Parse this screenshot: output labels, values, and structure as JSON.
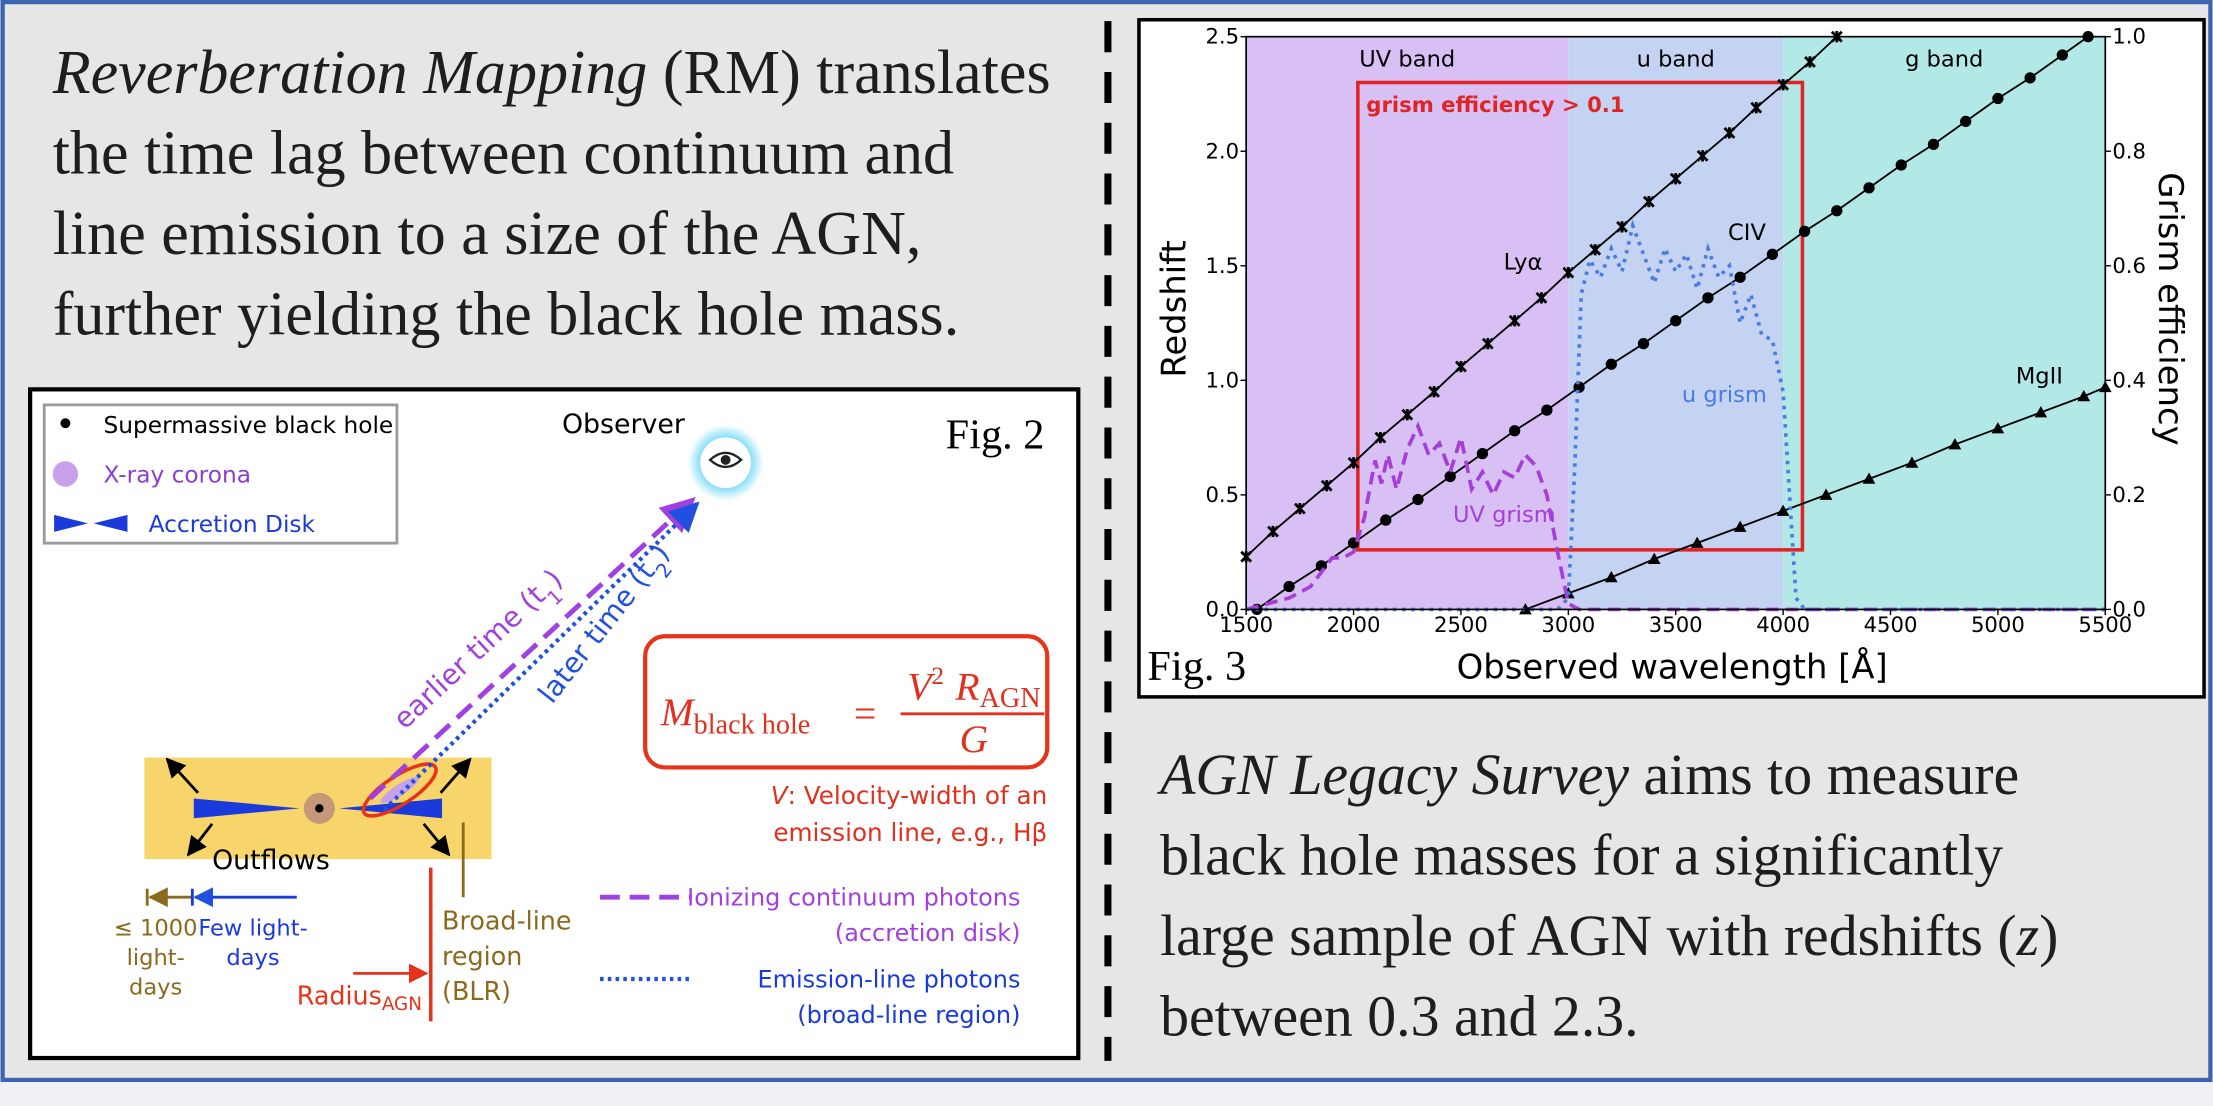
{
  "intro": {
    "emphasis": "Reverberation Mapping",
    "lines": [
      " (RM) translates",
      "the time lag between continuum and",
      "line emission to a size of the AGN,",
      "further yielding the black hole mass."
    ]
  },
  "outro": {
    "emphasis": "AGN Legacy Survey",
    "lines": [
      " aims to measure",
      "black hole masses for a significantly",
      "large sample of AGN with redshifts (",
      "between 0.3 and 2.3."
    ],
    "variable": "z",
    "close": ")"
  },
  "figure2": {
    "label": "Fig. 2",
    "legend": [
      "Supermassive black hole",
      "X-ray corona",
      "Accretion Disk"
    ],
    "observer": "Observer",
    "earlier": {
      "text": "earlier time (t",
      "sub": "1",
      "end": ")"
    },
    "later": {
      "text": "later time (t",
      "sub": "2",
      "end": ")"
    },
    "equation": {
      "m": "M",
      "m_sub": "black hole",
      "eq": "=",
      "v": "V",
      "v_exp": "2",
      "r": "R",
      "r_sub": "AGN",
      "g": "G"
    },
    "note": {
      "var": "V",
      "lines": [
        ": Velocity-width of an",
        "emission line, e.g., Hβ"
      ]
    },
    "outflows": "Outflows",
    "scale_agn": [
      "≤ 1000",
      "light-",
      "days"
    ],
    "scale_blr": [
      "Few light-",
      "days"
    ],
    "radius": {
      "text": "Radius",
      "sub": "AGN"
    },
    "blr": [
      "Broad-line",
      "region",
      "(BLR)"
    ],
    "key": [
      {
        "lines": [
          "Ionizing continuum photons",
          "(accretion disk)"
        ]
      },
      {
        "lines": [
          "Emission-line photons",
          "(broad-line region)"
        ]
      }
    ]
  },
  "chart_data": {
    "type": "line",
    "label": "Fig. 3",
    "x_label": "Observed wavelength [Å]",
    "y_label": "Redshift",
    "y2_label": "Grism efficiency",
    "xlim": [
      1500,
      5500
    ],
    "xticks": [
      1500,
      2000,
      2500,
      3000,
      3500,
      4000,
      4500,
      5000,
      5500
    ],
    "ylim": [
      0,
      2.5
    ],
    "yticks": [
      {
        "value": 0,
        "label": "0.0"
      },
      0.5,
      {
        "value": 1,
        "label": "1.0"
      },
      1.5,
      {
        "value": 2,
        "label": "2.0"
      },
      2.5
    ],
    "y2lim": [
      0,
      1
    ],
    "y2ticks": [
      {
        "value": 0,
        "label": "0.0"
      },
      0.2,
      0.4,
      0.6,
      0.8,
      {
        "value": 1,
        "label": "1.0"
      }
    ],
    "bands": [
      {
        "label": "UV band",
        "range": [
          1500,
          3000
        ],
        "color": "#d8bff4"
      },
      {
        "label": "u band",
        "range": [
          3000,
          4000
        ],
        "color": "#c4d3f2"
      },
      {
        "label": "g band",
        "range": [
          4000,
          5500
        ],
        "color": "#b2e9e6"
      }
    ],
    "region": {
      "label": "grism efficiency > 0.1",
      "xrange": [
        2020,
        4090
      ],
      "yrange": [
        0.26,
        2.3
      ],
      "color": "#e02424"
    },
    "series": [
      {
        "name": "Lyα",
        "color": "#000000",
        "marker": "x",
        "linestyle": "solid",
        "x": [
          1500,
          1625,
          1750,
          1875,
          2000,
          2125,
          2250,
          2375,
          2500,
          2625,
          2750,
          2875,
          3000,
          3125,
          3250,
          3375,
          3500,
          3625,
          3750,
          3875,
          4000,
          4125,
          4250
        ],
        "values": [
          0.23,
          0.34,
          0.44,
          0.54,
          0.64,
          0.75,
          0.85,
          0.95,
          1.06,
          1.16,
          1.26,
          1.36,
          1.47,
          1.57,
          1.67,
          1.78,
          1.88,
          1.98,
          2.08,
          2.19,
          2.29,
          2.39,
          2.5
        ]
      },
      {
        "name": "CIV",
        "color": "#000000",
        "marker": "o",
        "linestyle": "solid",
        "x": [
          1550,
          1700,
          1850,
          2000,
          2150,
          2300,
          2450,
          2600,
          2750,
          2900,
          3050,
          3200,
          3350,
          3500,
          3650,
          3800,
          3950,
          4100,
          4250,
          4400,
          4550,
          4700,
          4850,
          5000,
          5150,
          5300,
          5420
        ],
        "values": [
          0,
          0.1,
          0.19,
          0.29,
          0.39,
          0.48,
          0.58,
          0.68,
          0.78,
          0.87,
          0.97,
          1.07,
          1.16,
          1.26,
          1.36,
          1.45,
          1.55,
          1.65,
          1.74,
          1.84,
          1.94,
          2.03,
          2.13,
          2.23,
          2.32,
          2.42,
          2.5
        ]
      },
      {
        "name": "MgII",
        "color": "#000000",
        "marker": "^",
        "linestyle": "solid",
        "x": [
          2800,
          3000,
          3200,
          3400,
          3600,
          3800,
          4000,
          4200,
          4400,
          4600,
          4800,
          5000,
          5200,
          5400,
          5500
        ],
        "values": [
          0,
          0.07,
          0.14,
          0.22,
          0.29,
          0.36,
          0.43,
          0.5,
          0.57,
          0.64,
          0.72,
          0.79,
          0.86,
          0.93,
          0.97
        ]
      },
      {
        "name": "UV grism",
        "color": "#a63fd6",
        "marker": "none",
        "linestyle": "dashed",
        "axis": "y2",
        "x": [
          1500,
          1700,
          1800,
          1900,
          1950,
          2000,
          2050,
          2100,
          2130,
          2160,
          2200,
          2250,
          2300,
          2350,
          2400,
          2450,
          2500,
          2550,
          2600,
          2650,
          2700,
          2750,
          2800,
          2850,
          2900,
          2950,
          3000,
          3050,
          3100,
          5500
        ],
        "values": [
          0,
          0.02,
          0.04,
          0.09,
          0.09,
          0.1,
          0.16,
          0.26,
          0.22,
          0.27,
          0.21,
          0.28,
          0.32,
          0.27,
          0.29,
          0.24,
          0.3,
          0.21,
          0.24,
          0.2,
          0.24,
          0.23,
          0.27,
          0.25,
          0.2,
          0.1,
          0.01,
          0,
          0,
          0
        ]
      },
      {
        "name": "u grism",
        "color": "#4a7de0",
        "marker": "none",
        "linestyle": "dotted",
        "axis": "y2",
        "x": [
          1500,
          2950,
          3000,
          3030,
          3060,
          3100,
          3150,
          3200,
          3250,
          3300,
          3350,
          3400,
          3450,
          3500,
          3550,
          3600,
          3650,
          3700,
          3750,
          3800,
          3850,
          3900,
          3950,
          4000,
          4030,
          4060,
          4100,
          5500
        ],
        "values": [
          0,
          0,
          0.02,
          0.25,
          0.55,
          0.61,
          0.58,
          0.63,
          0.59,
          0.67,
          0.62,
          0.57,
          0.63,
          0.59,
          0.62,
          0.56,
          0.63,
          0.58,
          0.6,
          0.5,
          0.55,
          0.48,
          0.47,
          0.38,
          0.2,
          0.02,
          0,
          0
        ]
      }
    ]
  }
}
